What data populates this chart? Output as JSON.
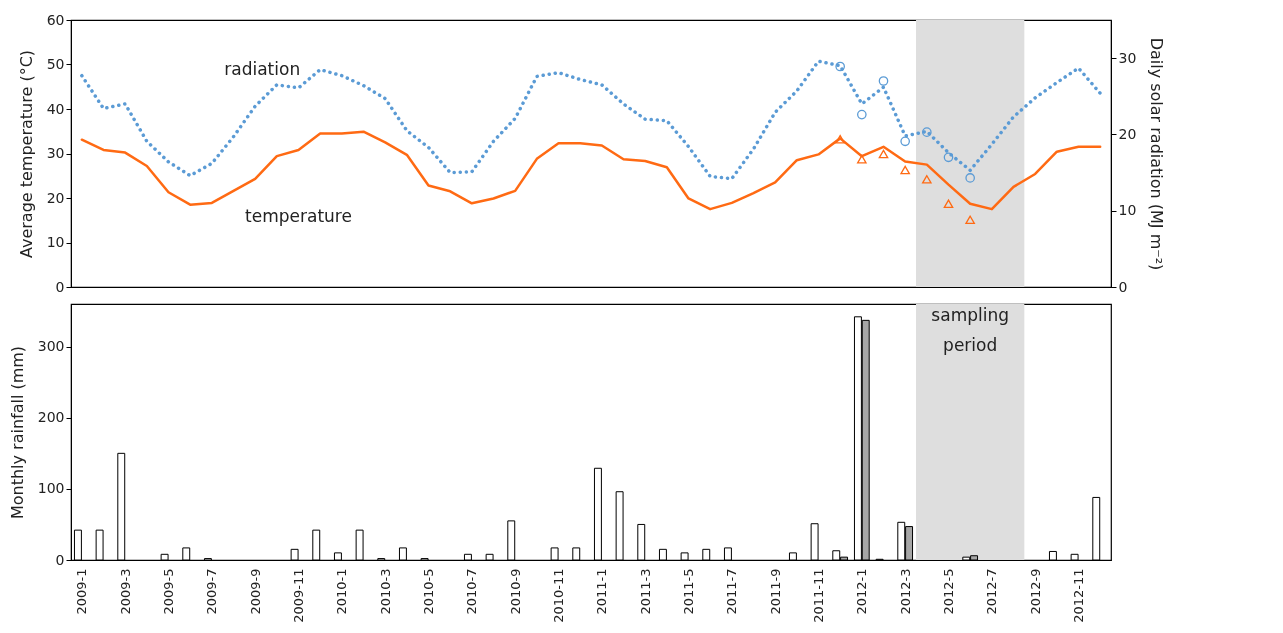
{
  "chart_data": [
    {
      "type": "line",
      "categories": [
        "2009-1",
        null,
        "2009-3",
        null,
        "2009-5",
        null,
        "2009-7",
        null,
        "2009-9",
        null,
        "2009-11",
        null,
        "2010-1",
        null,
        "2010-3",
        null,
        "2010-5",
        null,
        "2010-7",
        null,
        "2010-9",
        null,
        "2010-11",
        null,
        "2011-1",
        null,
        "2011-3",
        null,
        "2011-5",
        null,
        "2011-7",
        null,
        "2011-9",
        null,
        "2011-11",
        null,
        "2012-1",
        null,
        "2012-3",
        null,
        "2012-5",
        null,
        "2012-7",
        null,
        "2012-9",
        null,
        "2012-11",
        null
      ],
      "ylabel": "Average temperature (°C)",
      "y2label": "Daily solar radiation (MJ m⁻²)",
      "ylim": [
        0,
        60
      ],
      "yticks": [
        0,
        10,
        20,
        30,
        40,
        50,
        60
      ],
      "y2lim": [
        0,
        35
      ],
      "y2ticks": [
        0,
        10,
        20,
        30
      ],
      "tick_labels": "y",
      "legend": false,
      "grid": false,
      "series": [
        {
          "name": "temperature",
          "color": "#ff6a13",
          "line_style": "solid",
          "marker": "none",
          "values": [
            33.1,
            30.8,
            30.2,
            27.2,
            21.3,
            18.5,
            18.9,
            21.6,
            24.3,
            29.4,
            30.8,
            34.5,
            34.5,
            34.9,
            32.5,
            29.7,
            22.8,
            21.5,
            18.8,
            19.9,
            21.6,
            28.8,
            32.3,
            32.3,
            31.8,
            28.7,
            28.3,
            26.9,
            19.9,
            17.5,
            18.9,
            21.1,
            23.5,
            28.5,
            29.8,
            33.4,
            29.4,
            31.5,
            28.2,
            27.5,
            23.0,
            18.7,
            17.5,
            22.5,
            25.4,
            30.4,
            31.5,
            31.5
          ]
        },
        {
          "name": "radiation",
          "axis": "y2",
          "color": "#5b9bd5",
          "line_style": "dotted",
          "marker": "none",
          "values": [
            27.7,
            23.4,
            24.0,
            19.1,
            16.4,
            14.6,
            16.2,
            19.7,
            23.7,
            26.5,
            26.1,
            28.5,
            27.7,
            26.4,
            24.7,
            20.5,
            18.3,
            15.0,
            15.1,
            19.1,
            22.1,
            27.6,
            28.1,
            27.2,
            26.5,
            24.0,
            22.0,
            21.8,
            18.4,
            14.5,
            14.2,
            18.1,
            22.9,
            25.7,
            29.6,
            29.0,
            24.0,
            26.2,
            19.8,
            20.4,
            17.6,
            15.3,
            18.7,
            22.3,
            24.8,
            26.8,
            28.7,
            25.4
          ]
        },
        {
          "type": "scatter",
          "color": "#ff6a13",
          "marker": "triangle",
          "values": [
            null,
            null,
            null,
            null,
            null,
            null,
            null,
            null,
            null,
            null,
            null,
            null,
            null,
            null,
            null,
            null,
            null,
            null,
            null,
            null,
            null,
            null,
            null,
            null,
            null,
            null,
            null,
            null,
            null,
            null,
            null,
            null,
            null,
            null,
            null,
            33.2,
            28.7,
            29.9,
            26.3,
            24.2,
            18.7,
            15.1,
            null,
            null,
            null,
            null,
            null,
            null
          ]
        },
        {
          "type": "scatter",
          "axis": "y2",
          "color": "#5b9bd5",
          "marker": "circle",
          "values": [
            null,
            null,
            null,
            null,
            null,
            null,
            null,
            null,
            null,
            null,
            null,
            null,
            null,
            null,
            null,
            null,
            null,
            null,
            null,
            null,
            null,
            null,
            null,
            null,
            null,
            null,
            null,
            null,
            null,
            null,
            null,
            null,
            null,
            null,
            null,
            28.9,
            22.6,
            27.0,
            19.1,
            20.3,
            17.0,
            14.3,
            null,
            null,
            null,
            null,
            null,
            null
          ]
        }
      ],
      "bands": [
        {
          "axis": "x",
          "from": "2012-3",
          "to": "2012-9",
          "color": "#dedede"
        }
      ]
    },
    {
      "type": "bar",
      "categories": [
        "2009-1",
        null,
        "2009-3",
        null,
        "2009-5",
        null,
        "2009-7",
        null,
        "2009-9",
        null,
        "2009-11",
        null,
        "2010-1",
        null,
        "2010-3",
        null,
        "2010-5",
        null,
        "2010-7",
        null,
        "2010-9",
        null,
        "2010-11",
        null,
        "2011-1",
        null,
        "2011-3",
        null,
        "2011-5",
        null,
        "2011-7",
        null,
        "2011-9",
        null,
        "2011-11",
        null,
        "2012-1",
        null,
        "2012-3",
        null,
        "2012-5",
        null,
        "2012-7",
        null,
        "2012-9",
        null,
        "2012-11",
        null
      ],
      "ylabel": "Monthly rainfall (mm)",
      "ylim": [
        0,
        360
      ],
      "yticks": [
        0,
        100,
        200,
        300
      ],
      "legend": false,
      "grid": false,
      "series": [
        {
          "color": "#ffffff",
          "values": [
            42,
            42,
            150,
            null,
            8,
            17,
            2,
            null,
            null,
            null,
            15,
            42,
            10,
            42,
            2,
            17,
            2,
            null,
            8,
            8,
            55,
            null,
            17,
            17,
            129,
            96,
            50,
            15,
            10,
            15,
            17,
            null,
            null,
            10,
            51,
            13,
            342,
            1,
            53,
            null,
            null,
            4,
            null,
            null,
            null,
            12,
            8,
            88
          ]
        },
        {
          "color": "#a6a6a6",
          "values": [
            null,
            null,
            null,
            null,
            null,
            null,
            null,
            null,
            null,
            null,
            null,
            null,
            null,
            null,
            null,
            null,
            null,
            null,
            null,
            null,
            null,
            null,
            null,
            null,
            null,
            null,
            null,
            null,
            null,
            null,
            null,
            null,
            null,
            null,
            null,
            4,
            337,
            null,
            47,
            null,
            null,
            6,
            null,
            null,
            null,
            null,
            null,
            null
          ]
        }
      ],
      "bands": [
        {
          "axis": "x",
          "from": "2012-3",
          "to": "2012-9",
          "color": "#dedede",
          "label": "sampling period"
        }
      ]
    }
  ]
}
